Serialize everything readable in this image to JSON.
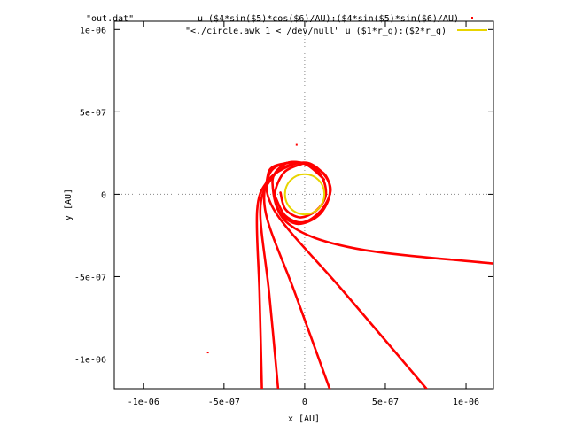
{
  "chart_data": {
    "type": "scatter",
    "title": "\"out.dat\"",
    "xlabel": "x [AU]",
    "ylabel": "y [AU]",
    "xlim": [
      -1.18e-06,
      1.17e-06
    ],
    "ylim": [
      -1.18e-06,
      1.05e-06
    ],
    "x_ticks": [
      {
        "value": -1e-06,
        "label": "-1e-06"
      },
      {
        "value": -5e-07,
        "label": "-5e-07"
      },
      {
        "value": 0,
        "label": "0"
      },
      {
        "value": 5e-07,
        "label": "5e-07"
      },
      {
        "value": 1e-06,
        "label": "1e-06"
      }
    ],
    "y_ticks": [
      {
        "value": 1e-06,
        "label": "1e-06"
      },
      {
        "value": 5e-07,
        "label": "5e-07"
      },
      {
        "value": 0,
        "label": "0"
      },
      {
        "value": -5e-07,
        "label": "-5e-07"
      },
      {
        "value": -1e-06,
        "label": "-1e-06"
      }
    ],
    "zero_axes": true,
    "grid": false,
    "legend_position": "top-right",
    "series": [
      {
        "name": "u ($4*sin($5)*cos($6)/AU):($4*sin($5)*sin($6)/AU)",
        "color": "#ff0000",
        "style": "points",
        "trajectories": [
          [
            [
              -2.65e-07,
              -1.18e-06
            ],
            [
              -2.8e-07,
              -6e-07
            ],
            [
              -2.95e-07,
              -1e-07
            ],
            [
              -2.3e-07,
              8e-08
            ],
            [
              -1e-07,
              1.7e-07
            ],
            [
              2e-08,
              1.9e-07
            ],
            [
              1.2e-07,
              1.2e-07
            ],
            [
              1.6e-07,
              2e-08
            ],
            [
              1e-07,
              -1e-07
            ],
            [
              -1e-08,
              -1.7e-07
            ],
            [
              -1.2e-07,
              -1.3e-07
            ],
            [
              -1.8e-07,
              -2e-08
            ]
          ],
          [
            [
              -1.65e-07,
              -1.18e-06
            ],
            [
              -2.2e-07,
              -6e-07
            ],
            [
              -2.75e-07,
              -1e-07
            ],
            [
              -2.1e-07,
              9e-08
            ],
            [
              -9e-08,
              1.8e-07
            ],
            [
              3e-08,
              1.8e-07
            ],
            [
              1.1e-07,
              1e-07
            ],
            [
              1.3e-07,
              -1e-08
            ],
            [
              7e-08,
              -1e-07
            ],
            [
              -3e-08,
              -1.4e-07
            ],
            [
              -1.2e-07,
              -9e-08
            ],
            [
              -1.5e-07,
              1e-08
            ]
          ],
          [
            [
              1.55e-07,
              -1.18e-06
            ],
            [
              -6e-08,
              -6e-07
            ],
            [
              -2.4e-07,
              -1.2e-07
            ],
            [
              -2.2e-07,
              1.2e-07
            ],
            [
              -1.1e-07,
              1.9e-07
            ],
            [
              2e-08,
              1.8e-07
            ],
            [
              1.2e-07,
              9e-08
            ]
          ],
          [
            [
              7.55e-07,
              -1.18e-06
            ],
            [
              2.5e-07,
              -6e-07
            ],
            [
              -1.8e-07,
              -1.1e-07
            ],
            [
              -2.25e-07,
              1.3e-07
            ],
            [
              -1.1e-07,
              1.9e-07
            ],
            [
              1e-08,
              1.8e-07
            ],
            [
              1.1e-07,
              1e-07
            ]
          ],
          [
            [
              1.17e-06,
              -4.2e-07
            ],
            [
              3.2e-07,
              -3.3e-07
            ],
            [
              -1e-07,
              -1.8e-07
            ],
            [
              -2e-07,
              7e-08
            ],
            [
              -1.2e-07,
              1.85e-07
            ],
            [
              0,
              1.85e-07
            ],
            [
              1e-07,
              1.2e-07
            ]
          ],
          [
            [
              0,
              1.9e-07
            ],
            [
              1.25e-07,
              1.2e-07
            ],
            [
              1.55e-07,
              0
            ],
            [
              9e-08,
              -1.25e-07
            ],
            [
              -4e-08,
              -1.8e-07
            ],
            [
              -1.45e-07,
              -1.2e-07
            ],
            [
              -1.85e-07,
              0
            ],
            [
              -1.25e-07,
              1.35e-07
            ],
            [
              0,
              1.9e-07
            ]
          ]
        ],
        "isolated_points": [
          [
            -5e-08,
            3e-07
          ],
          [
            -6e-07,
            -9.6e-07
          ]
        ]
      },
      {
        "name": "\"<./circle.awk 1 < /dev/null\" u ($1*r_g):($2*r_g)",
        "color": "#e8d400",
        "style": "lines",
        "circle": {
          "center": [
            0,
            0
          ],
          "radius": 1.22e-07
        }
      }
    ]
  }
}
